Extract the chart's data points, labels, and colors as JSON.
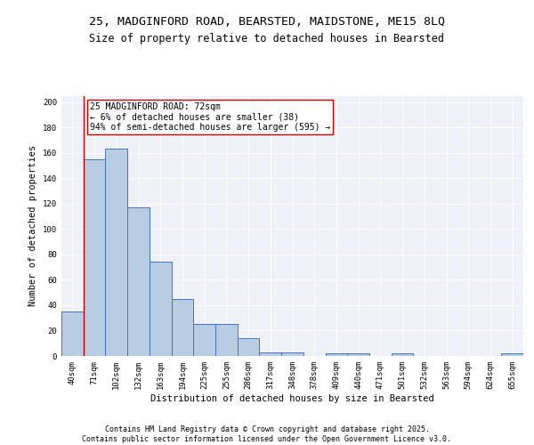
{
  "title_line1": "25, MADGINFORD ROAD, BEARSTED, MAIDSTONE, ME15 8LQ",
  "title_line2": "Size of property relative to detached houses in Bearsted",
  "xlabel": "Distribution of detached houses by size in Bearsted",
  "ylabel": "Number of detached properties",
  "bar_color": "#b8cce4",
  "bar_edge_color": "#4472c4",
  "categories": [
    "40sqm",
    "71sqm",
    "102sqm",
    "132sqm",
    "163sqm",
    "194sqm",
    "225sqm",
    "255sqm",
    "286sqm",
    "317sqm",
    "348sqm",
    "378sqm",
    "409sqm",
    "440sqm",
    "471sqm",
    "501sqm",
    "532sqm",
    "563sqm",
    "594sqm",
    "624sqm",
    "655sqm"
  ],
  "values": [
    35,
    155,
    163,
    117,
    74,
    45,
    25,
    25,
    14,
    3,
    3,
    0,
    2,
    2,
    0,
    2,
    0,
    0,
    0,
    0,
    2
  ],
  "ylim": [
    0,
    205
  ],
  "yticks": [
    0,
    20,
    40,
    60,
    80,
    100,
    120,
    140,
    160,
    180,
    200
  ],
  "vline_x": 0.5,
  "annotation_text": "25 MADGINFORD ROAD: 72sqm\n← 6% of detached houses are smaller (38)\n94% of semi-detached houses are larger (595) →",
  "annotation_box_color": "white",
  "annotation_box_edge": "#cc0000",
  "vline_color": "#cc0000",
  "footnote1": "Contains HM Land Registry data © Crown copyright and database right 2025.",
  "footnote2": "Contains public sector information licensed under the Open Government Licence v3.0.",
  "background_color": "#eef2f8",
  "grid_color": "#ffffff",
  "title_fontsize": 9.5,
  "subtitle_fontsize": 8.5,
  "axis_label_fontsize": 7.5,
  "tick_fontsize": 6.5,
  "annotation_fontsize": 7,
  "footnote_fontsize": 6
}
